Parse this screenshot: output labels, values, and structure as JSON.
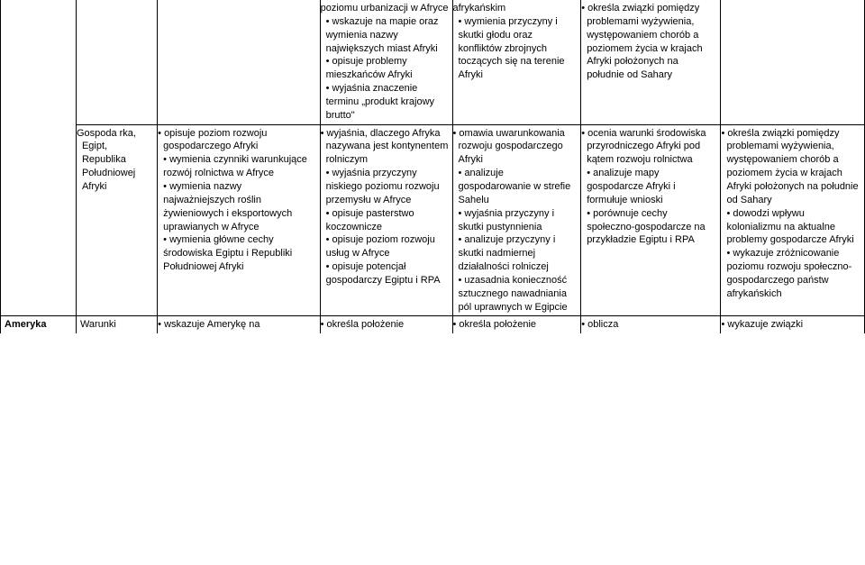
{
  "row1": {
    "col1": "",
    "col2": "",
    "col3": "",
    "col4": "poziomu urbanizacji w Afryce\n• wskazuje na mapie oraz wymienia nazwy największych miast Afryki\n• opisuje problemy mieszkańców Afryki\n• wyjaśnia znaczenie terminu „produkt krajowy brutto\"",
    "col5": "afrykańskim\n• wymienia przyczyny                  i skutki głodu oraz konfliktów zbrojnych toczących się na terenie Afryki",
    "col6": "• określa związki pomiędzy problemami wyżywienia, występowaniem chorób                          a poziomem życia               w krajach Afryki położonych na południe od Sahary",
    "col7": ""
  },
  "row2": {
    "col1": "",
    "col2": "Gospoda rka,              Egipt, Republika Południowej Afryki",
    "col3": "• opisuje poziom rozwoju gospodarczego Afryki\n• wymienia czynniki warunkujące rozwój rolnictwa w Afryce\n• wymienia nazwy najważniejszych roślin żywieniowych i eksportowych uprawianych w Afryce\n• wymienia główne cechy środowiska Egiptu i Republiki Południowej Afryki",
    "col4": "• wyjaśnia, dlaczego Afryka nazywana jest kontynentem rolniczym\n• wyjaśnia przyczyny niskiego poziomu rozwoju przemysłu w Afryce\n• opisuje pasterstwo koczownicze\n• opisuje poziom rozwoju usług w Afryce\n• opisuje potencjał gospodarczy Egiptu i RPA",
    "col5": "• omawia uwarunkowania rozwoju gospodarczego Afryki\n• analizuje gospodarowanie w strefie Sahelu\n• wyjaśnia przyczyny i skutki pustynnienia\n• analizuje przyczyny i skutki nadmiernej działalności rolniczej\n• uzasadnia konieczność sztucznego nawadniania pól uprawnych w Egipcie",
    "col6": "• ocenia warunki środowiska przyrodniczego Afryki                   pod kątem rozwoju rolnictwa\n• analizuje mapy gospodarcze Afryki                 i formułuje wnioski\n• porównuje cechy społeczno-gospodarcze                      na przykładzie Egiptu                     i RPA",
    "col7": "• określa związki pomiędzy problemami wyżywienia, występowaniem chorób                          a poziomem życia w krajach Afryki położonych na południe od Sahary\n• dowodzi wpływu kolonializmu na aktualne problemy gospodarcze Afryki\n• wykazuje zróżnicowanie poziomu rozwoju społeczno-gospodarczego państw afrykańskich"
  },
  "row3": {
    "col1": "Ameryka",
    "col2": "Warunki",
    "col3": "• wskazuje Amerykę na",
    "col4": "• określa położenie",
    "col5": "• określa położenie",
    "col6": "• oblicza",
    "col7": "• wykazuje związki"
  }
}
